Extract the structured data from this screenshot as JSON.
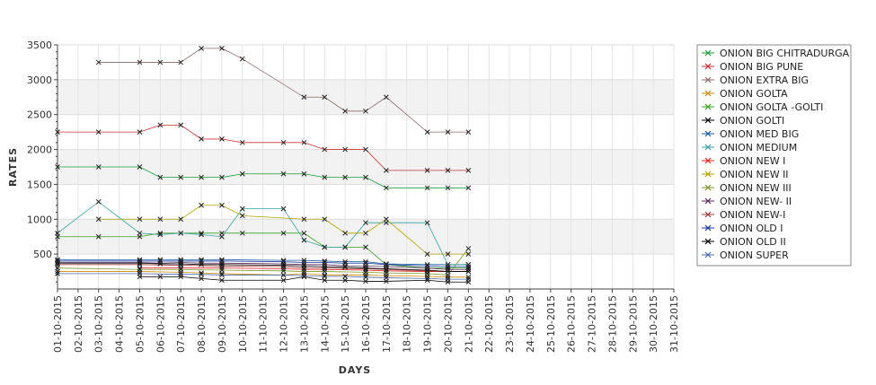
{
  "chart_data": {
    "type": "line",
    "xlabel": "DAYS",
    "ylabel": "RATES",
    "ylim": [
      0,
      3500
    ],
    "yticks": [
      500,
      1000,
      1500,
      2000,
      2500,
      3000,
      3500
    ],
    "grid": true,
    "legend_position": "right",
    "categories": [
      "01-10-2015",
      "02-10-2015",
      "03-10-2015",
      "04-10-2015",
      "05-10-2015",
      "06-10-2015",
      "07-10-2015",
      "08-10-2015",
      "09-10-2015",
      "10-10-2015",
      "11-10-2015",
      "12-10-2015",
      "13-10-2015",
      "14-10-2015",
      "15-10-2015",
      "16-10-2015",
      "17-10-2015",
      "18-10-2015",
      "19-10-2015",
      "20-10-2015",
      "21-10-2015",
      "22-10-2015",
      "23-10-2015",
      "24-10-2015",
      "25-10-2015",
      "26-10-2015",
      "27-10-2015",
      "28-10-2015",
      "29-10-2015",
      "30-10-2015",
      "31-10-2015"
    ],
    "series": [
      {
        "name": "ONION BIG CHITRADURGA",
        "color": "#1a9a3a",
        "x": [
          "01-10-2015",
          "03-10-2015",
          "05-10-2015",
          "06-10-2015",
          "07-10-2015",
          "08-10-2015",
          "09-10-2015",
          "10-10-2015",
          "12-10-2015",
          "13-10-2015",
          "14-10-2015",
          "15-10-2015",
          "16-10-2015",
          "17-10-2015",
          "19-10-2015",
          "20-10-2015",
          "21-10-2015"
        ],
        "values": [
          1750,
          1750,
          1750,
          1600,
          1600,
          1600,
          1600,
          1650,
          1650,
          1650,
          1600,
          1600,
          1600,
          1450,
          1450,
          1450,
          1450
        ]
      },
      {
        "name": "ONION BIG PUNE",
        "color": "#c83232",
        "x": [
          "01-10-2015",
          "03-10-2015",
          "05-10-2015",
          "06-10-2015",
          "07-10-2015",
          "08-10-2015",
          "09-10-2015",
          "10-10-2015",
          "12-10-2015",
          "13-10-2015",
          "14-10-2015",
          "15-10-2015",
          "16-10-2015",
          "17-10-2015",
          "19-10-2015",
          "20-10-2015",
          "21-10-2015"
        ],
        "values": [
          2250,
          2250,
          2250,
          2350,
          2350,
          2150,
          2150,
          2100,
          2100,
          2100,
          2000,
          2000,
          2000,
          1700,
          1700,
          1700,
          1700
        ]
      },
      {
        "name": "ONION EXTRA BIG",
        "color": "#8a6a6a",
        "x": [
          "03-10-2015",
          "05-10-2015",
          "06-10-2015",
          "07-10-2015",
          "08-10-2015",
          "09-10-2015",
          "10-10-2015",
          "13-10-2015",
          "14-10-2015",
          "15-10-2015",
          "16-10-2015",
          "17-10-2015",
          "19-10-2015",
          "20-10-2015",
          "21-10-2015"
        ],
        "values": [
          3250,
          3250,
          3250,
          3250,
          3450,
          3450,
          3300,
          2750,
          2750,
          2550,
          2550,
          2750,
          2250,
          2250,
          2250
        ]
      },
      {
        "name": "ONION GOLTA",
        "color": "#d08a00",
        "x": [
          "01-10-2015",
          "05-10-2015",
          "07-10-2015",
          "08-10-2015",
          "09-10-2015",
          "12-10-2015",
          "13-10-2015",
          "14-10-2015",
          "16-10-2015",
          "17-10-2015",
          "19-10-2015",
          "20-10-2015",
          "21-10-2015"
        ],
        "values": [
          250,
          250,
          240,
          230,
          220,
          200,
          220,
          200,
          200,
          190,
          180,
          170,
          170
        ]
      },
      {
        "name": "ONION GOLTA -GOLTI",
        "color": "#3aa020",
        "x": [
          "01-10-2015",
          "03-10-2015",
          "05-10-2015",
          "06-10-2015",
          "07-10-2015",
          "08-10-2015",
          "09-10-2015",
          "10-10-2015",
          "12-10-2015",
          "13-10-2015",
          "14-10-2015",
          "15-10-2015",
          "16-10-2015",
          "17-10-2015",
          "19-10-2015",
          "20-10-2015",
          "21-10-2015"
        ],
        "values": [
          750,
          750,
          750,
          800,
          800,
          800,
          800,
          800,
          800,
          800,
          600,
          600,
          600,
          350,
          300,
          300,
          300
        ]
      },
      {
        "name": "ONION GOLTI",
        "color": "#000000",
        "x": [
          "05-10-2015",
          "06-10-2015",
          "07-10-2015",
          "08-10-2015",
          "09-10-2015",
          "12-10-2015",
          "13-10-2015",
          "14-10-2015",
          "15-10-2015",
          "16-10-2015",
          "17-10-2015",
          "19-10-2015",
          "20-10-2015",
          "21-10-2015"
        ],
        "values": [
          175,
          175,
          175,
          150,
          125,
          125,
          175,
          125,
          125,
          110,
          110,
          125,
          100,
          100
        ]
      },
      {
        "name": "ONION MED BIG",
        "color": "#1a5aa0",
        "x": [
          "01-10-2015",
          "05-10-2015",
          "06-10-2015",
          "07-10-2015",
          "08-10-2015",
          "09-10-2015",
          "12-10-2015",
          "13-10-2015",
          "14-10-2015",
          "15-10-2015",
          "16-10-2015",
          "17-10-2015",
          "19-10-2015",
          "20-10-2015",
          "21-10-2015"
        ],
        "values": [
          420,
          420,
          420,
          420,
          420,
          420,
          410,
          410,
          400,
          390,
          390,
          360,
          350,
          350,
          350
        ]
      },
      {
        "name": "ONION MEDIUM",
        "color": "#3aa0a0",
        "x": [
          "01-10-2015",
          "03-10-2015",
          "05-10-2015",
          "06-10-2015",
          "07-10-2015",
          "08-10-2015",
          "09-10-2015",
          "10-10-2015",
          "12-10-2015",
          "13-10-2015",
          "14-10-2015",
          "15-10-2015",
          "16-10-2015",
          "17-10-2015",
          "19-10-2015",
          "20-10-2015",
          "21-10-2015"
        ],
        "values": [
          800,
          1250,
          800,
          780,
          800,
          780,
          750,
          1150,
          1150,
          700,
          600,
          600,
          950,
          950,
          950,
          350,
          350
        ]
      },
      {
        "name": "ONION NEW I",
        "color": "#e02020",
        "x": [
          "05-10-2015",
          "07-10-2015",
          "09-10-2015",
          "12-10-2015",
          "13-10-2015",
          "14-10-2015",
          "16-10-2015",
          "17-10-2015",
          "19-10-2015",
          "20-10-2015",
          "21-10-2015"
        ],
        "values": [
          300,
          300,
          300,
          290,
          280,
          280,
          270,
          260,
          250,
          250,
          250
        ]
      },
      {
        "name": "ONION NEW II",
        "color": "#b0a000",
        "x": [
          "03-10-2015",
          "05-10-2015",
          "06-10-2015",
          "07-10-2015",
          "08-10-2015",
          "09-10-2015",
          "10-10-2015",
          "13-10-2015",
          "14-10-2015",
          "15-10-2015",
          "16-10-2015",
          "17-10-2015",
          "19-10-2015",
          "20-10-2015",
          "21-10-2015"
        ],
        "values": [
          1000,
          1000,
          1000,
          1000,
          1200,
          1200,
          1050,
          1000,
          1000,
          800,
          800,
          1000,
          500,
          500,
          500
        ]
      },
      {
        "name": "ONION NEW III",
        "color": "#7a9a2a",
        "x": [
          "01-10-2015",
          "05-10-2015",
          "07-10-2015",
          "09-10-2015",
          "12-10-2015",
          "13-10-2015",
          "14-10-2015",
          "16-10-2015",
          "17-10-2015",
          "19-10-2015",
          "20-10-2015",
          "21-10-2015"
        ],
        "values": [
          300,
          280,
          280,
          270,
          260,
          250,
          250,
          240,
          230,
          220,
          200,
          580
        ]
      },
      {
        "name": "ONION NEW- II",
        "color": "#5a2a5a",
        "x": [
          "01-10-2015",
          "05-10-2015",
          "06-10-2015",
          "07-10-2015",
          "08-10-2015",
          "09-10-2015",
          "12-10-2015",
          "13-10-2015",
          "14-10-2015",
          "15-10-2015",
          "16-10-2015",
          "17-10-2015",
          "19-10-2015",
          "20-10-2015",
          "21-10-2015"
        ],
        "values": [
          380,
          380,
          370,
          380,
          370,
          370,
          360,
          350,
          350,
          330,
          330,
          320,
          300,
          280,
          280
        ]
      },
      {
        "name": "ONION NEW-I",
        "color": "#9a3a3a",
        "x": [
          "01-10-2015",
          "05-10-2015",
          "07-10-2015",
          "09-10-2015",
          "12-10-2015",
          "13-10-2015",
          "14-10-2015",
          "16-10-2015",
          "17-10-2015",
          "19-10-2015",
          "20-10-2015",
          "21-10-2015"
        ],
        "values": [
          350,
          350,
          340,
          330,
          320,
          300,
          300,
          290,
          280,
          260,
          250,
          250
        ]
      },
      {
        "name": "ONION OLD I",
        "color": "#1a3a9a",
        "x": [
          "01-10-2015",
          "05-10-2015",
          "06-10-2015",
          "07-10-2015",
          "08-10-2015",
          "09-10-2015",
          "12-10-2015",
          "13-10-2015",
          "14-10-2015",
          "15-10-2015",
          "16-10-2015",
          "17-10-2015",
          "19-10-2015",
          "20-10-2015",
          "21-10-2015"
        ],
        "values": [
          400,
          400,
          400,
          400,
          400,
          400,
          390,
          380,
          380,
          370,
          370,
          350,
          330,
          320,
          320
        ]
      },
      {
        "name": "ONION OLD II",
        "color": "#000000",
        "x": [
          "01-10-2015",
          "05-10-2015",
          "06-10-2015",
          "07-10-2015",
          "08-10-2015",
          "09-10-2015",
          "12-10-2015",
          "13-10-2015",
          "14-10-2015",
          "15-10-2015",
          "16-10-2015",
          "17-10-2015",
          "19-10-2015",
          "20-10-2015",
          "21-10-2015"
        ],
        "values": [
          370,
          370,
          360,
          360,
          350,
          350,
          340,
          330,
          320,
          310,
          300,
          290,
          270,
          250,
          250
        ]
      },
      {
        "name": "ONION SUPER",
        "color": "#4a6aaa",
        "x": [
          "01-10-2015",
          "05-10-2015",
          "07-10-2015",
          "08-10-2015",
          "09-10-2015",
          "12-10-2015",
          "13-10-2015",
          "14-10-2015",
          "15-10-2015",
          "16-10-2015",
          "17-10-2015",
          "19-10-2015",
          "20-10-2015",
          "21-10-2015"
        ],
        "values": [
          220,
          220,
          210,
          210,
          200,
          200,
          190,
          180,
          180,
          170,
          160,
          150,
          140,
          140
        ]
      }
    ]
  }
}
